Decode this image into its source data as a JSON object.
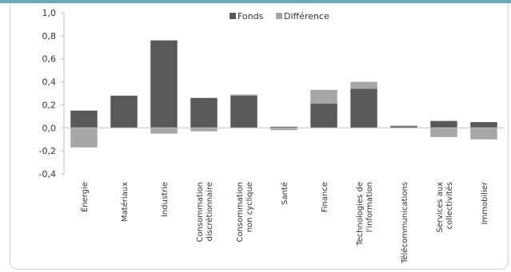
{
  "chart_data": {
    "type": "bar",
    "stacked": true,
    "categories": [
      "Énergie",
      "Matériaux",
      "Industrie",
      "Consommation discrétionnaire",
      "Consommation non cyclique",
      "Santé",
      "Finance",
      "Technologies de l'information",
      "Télécommunications",
      "Services aux collectivités",
      "Immobilier"
    ],
    "category_lines": [
      [
        "Énergie"
      ],
      [
        "Matériaux"
      ],
      [
        "Industrie"
      ],
      [
        "Consommation",
        "discrétionnaire"
      ],
      [
        "Consommation",
        "non cyclique"
      ],
      [
        "Santé"
      ],
      [
        "Finance"
      ],
      [
        "Technologies de",
        "l'information"
      ],
      [
        "Télécommunications"
      ],
      [
        "Services aux",
        "collectivités"
      ],
      [
        "Immobilier"
      ]
    ],
    "series": [
      {
        "name": "Fonds",
        "color": "#595959",
        "values": [
          0.15,
          0.28,
          0.76,
          0.26,
          0.28,
          0.01,
          0.21,
          0.34,
          0.015,
          0.06,
          0.05
        ]
      },
      {
        "name": "Différence",
        "color": "#a6a6a6",
        "values": [
          -0.17,
          0.0,
          -0.05,
          -0.03,
          0.01,
          -0.02,
          0.12,
          0.06,
          0.005,
          -0.08,
          -0.1
        ]
      }
    ],
    "yticks": [
      "1,0",
      "0,8",
      "0,6",
      "0,4",
      "0,2",
      "0,0",
      "-0,2",
      "-0,4"
    ],
    "ylim": [
      -0.4,
      1.0
    ],
    "xlabel": "",
    "ylabel": "",
    "grid": false,
    "legend_position": "top-center"
  }
}
